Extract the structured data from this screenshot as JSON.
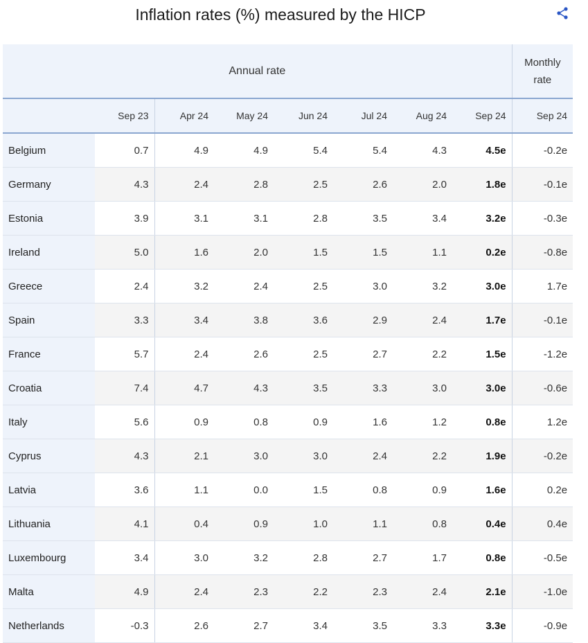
{
  "title": "Inflation rates (%) measured by the HICP",
  "header": {
    "annual_label": "Annual rate",
    "monthly_label_1": "Monthly",
    "monthly_label_2": "rate",
    "columns": [
      "Sep 23",
      "Apr 24",
      "May 24",
      "Jun 24",
      "Jul 24",
      "Aug 24",
      "Sep 24",
      "Sep 24"
    ]
  },
  "rows": [
    {
      "country": "Belgium",
      "values": [
        "0.7",
        "4.9",
        "4.9",
        "5.4",
        "5.4",
        "4.3",
        "4.5e",
        "-0.2e"
      ]
    },
    {
      "country": "Germany",
      "values": [
        "4.3",
        "2.4",
        "2.8",
        "2.5",
        "2.6",
        "2.0",
        "1.8e",
        "-0.1e"
      ]
    },
    {
      "country": "Estonia",
      "values": [
        "3.9",
        "3.1",
        "3.1",
        "2.8",
        "3.5",
        "3.4",
        "3.2e",
        "-0.3e"
      ]
    },
    {
      "country": "Ireland",
      "values": [
        "5.0",
        "1.6",
        "2.0",
        "1.5",
        "1.5",
        "1.1",
        "0.2e",
        "-0.8e"
      ]
    },
    {
      "country": "Greece",
      "values": [
        "2.4",
        "3.2",
        "2.4",
        "2.5",
        "3.0",
        "3.2",
        "3.0e",
        "1.7e"
      ]
    },
    {
      "country": "Spain",
      "values": [
        "3.3",
        "3.4",
        "3.8",
        "3.6",
        "2.9",
        "2.4",
        "1.7e",
        "-0.1e"
      ]
    },
    {
      "country": "France",
      "values": [
        "5.7",
        "2.4",
        "2.6",
        "2.5",
        "2.7",
        "2.2",
        "1.5e",
        "-1.2e"
      ]
    },
    {
      "country": "Croatia",
      "values": [
        "7.4",
        "4.7",
        "4.3",
        "3.5",
        "3.3",
        "3.0",
        "3.0e",
        "-0.6e"
      ]
    },
    {
      "country": "Italy",
      "values": [
        "5.6",
        "0.9",
        "0.8",
        "0.9",
        "1.6",
        "1.2",
        "0.8e",
        "1.2e"
      ]
    },
    {
      "country": "Cyprus",
      "values": [
        "4.3",
        "2.1",
        "3.0",
        "3.0",
        "2.4",
        "2.2",
        "1.9e",
        "-0.2e"
      ]
    },
    {
      "country": "Latvia",
      "values": [
        "3.6",
        "1.1",
        "0.0",
        "1.5",
        "0.8",
        "0.9",
        "1.6e",
        "0.2e"
      ]
    },
    {
      "country": "Lithuania",
      "values": [
        "4.1",
        "0.4",
        "0.9",
        "1.0",
        "1.1",
        "0.8",
        "0.4e",
        "0.4e"
      ]
    },
    {
      "country": "Luxembourg",
      "values": [
        "3.4",
        "3.0",
        "3.2",
        "2.8",
        "2.7",
        "1.7",
        "0.8e",
        "-0.5e"
      ]
    },
    {
      "country": "Malta",
      "values": [
        "4.9",
        "2.4",
        "2.3",
        "2.2",
        "2.3",
        "2.4",
        "2.1e",
        "-1.0e"
      ]
    },
    {
      "country": "Netherlands",
      "values": [
        "-0.3",
        "2.6",
        "2.7",
        "3.4",
        "3.5",
        "3.3",
        "3.3e",
        "-0.9e"
      ]
    }
  ]
}
